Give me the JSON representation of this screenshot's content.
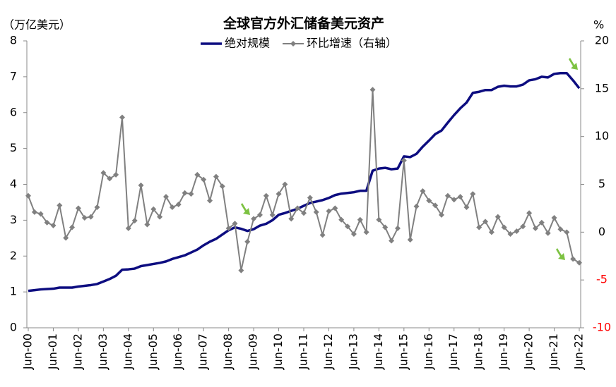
{
  "chart_data": {
    "type": "line",
    "title": "全球官方外汇储备美元资产",
    "ylabel": "（万亿美元）",
    "y2label": "%",
    "categories": [
      "Jun-00",
      null,
      null,
      null,
      "Jun-01",
      null,
      null,
      null,
      "Jun-02",
      null,
      null,
      null,
      "Jun-03",
      null,
      null,
      null,
      "Jun-04",
      null,
      null,
      null,
      "Jun-05",
      null,
      null,
      null,
      "Jun-06",
      null,
      null,
      null,
      "Jun-07",
      null,
      null,
      null,
      "Jun-08",
      null,
      null,
      null,
      "Jun-09",
      null,
      null,
      null,
      "Jun-10",
      null,
      null,
      null,
      "Jun-11",
      null,
      null,
      null,
      "Jun-12",
      null,
      null,
      null,
      "Jun-13",
      null,
      null,
      null,
      "Jun-14",
      null,
      null,
      null,
      "Jun-15",
      null,
      null,
      null,
      "Jun-16",
      null,
      null,
      null,
      "Jun-17",
      null,
      null,
      null,
      "Jun-18",
      null,
      null,
      null,
      "Jun-19",
      null,
      null,
      null,
      "Jun-20",
      null,
      null,
      null,
      "Jun-21",
      null,
      null,
      null,
      "Jun-22"
    ],
    "series": [
      {
        "name": "绝对规模",
        "color": "#0d0d80",
        "axis": "y",
        "marker": false,
        "values": [
          1.03,
          1.05,
          1.07,
          1.08,
          1.09,
          1.12,
          1.12,
          1.12,
          1.15,
          1.17,
          1.19,
          1.22,
          1.29,
          1.36,
          1.45,
          1.62,
          1.63,
          1.65,
          1.72,
          1.75,
          1.78,
          1.81,
          1.85,
          1.92,
          1.97,
          2.02,
          2.1,
          2.18,
          2.3,
          2.4,
          2.48,
          2.6,
          2.72,
          2.8,
          2.76,
          2.7,
          2.75,
          2.85,
          2.9,
          3.0,
          3.15,
          3.2,
          3.26,
          3.32,
          3.4,
          3.48,
          3.52,
          3.56,
          3.62,
          3.7,
          3.74,
          3.76,
          3.78,
          3.82,
          3.82,
          4.38,
          4.44,
          4.46,
          4.42,
          4.44,
          4.78,
          4.76,
          4.85,
          5.05,
          5.22,
          5.4,
          5.5,
          5.72,
          5.93,
          6.12,
          6.28,
          6.55,
          6.58,
          6.63,
          6.63,
          6.72,
          6.75,
          6.73,
          6.73,
          6.78,
          6.9,
          6.93,
          7.0,
          6.98,
          7.08,
          7.1,
          7.1,
          6.9,
          6.68
        ]
      },
      {
        "name": "环比增速（右轴）",
        "color": "#808080",
        "axis": "y2",
        "marker": true,
        "values": [
          3.8,
          2.1,
          1.9,
          1.0,
          0.7,
          2.8,
          -0.6,
          0.5,
          2.5,
          1.5,
          1.6,
          2.6,
          6.2,
          5.6,
          6.0,
          12.0,
          0.4,
          1.2,
          4.9,
          0.8,
          2.4,
          1.6,
          3.7,
          2.6,
          2.9,
          4.1,
          4.0,
          6.0,
          5.5,
          3.3,
          5.8,
          4.8,
          0.4,
          0.9,
          -4.0,
          -1.0,
          1.4,
          1.8,
          3.8,
          1.8,
          4.0,
          5.0,
          1.4,
          2.5,
          2.0,
          3.6,
          2.1,
          -0.3,
          2.2,
          2.5,
          1.3,
          0.6,
          -0.2,
          1.3,
          0.0,
          14.9,
          1.3,
          0.5,
          -0.9,
          0.4,
          7.5,
          -0.8,
          2.7,
          4.3,
          3.3,
          2.8,
          1.8,
          3.8,
          3.4,
          3.7,
          2.6,
          4.0,
          0.5,
          1.1,
          0.0,
          1.6,
          0.5,
          -0.2,
          0.1,
          0.6,
          2.0,
          0.4,
          1.0,
          -0.1,
          1.5,
          0.3,
          0.0,
          -2.8,
          -3.2
        ]
      }
    ],
    "ylim": [
      0,
      8
    ],
    "yticks": [
      0,
      1,
      2,
      3,
      4,
      5,
      6,
      7,
      8
    ],
    "y2lim": [
      -10,
      20
    ],
    "y2ticks": [
      -10,
      -5,
      0,
      5,
      10,
      15,
      20
    ],
    "y2tick_negative_color": "#ff0000",
    "grid": false,
    "legend": "top"
  }
}
